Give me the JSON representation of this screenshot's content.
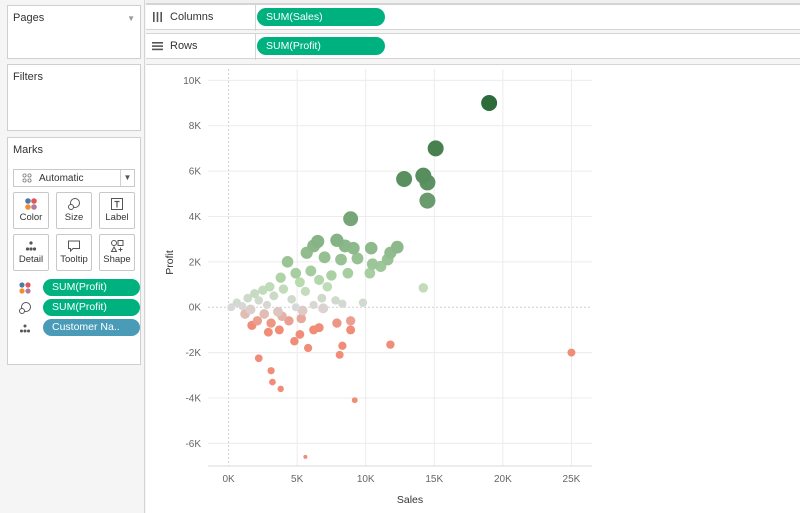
{
  "shelves": {
    "pages_label": "Pages",
    "filters_label": "Filters",
    "marks_label": "Marks",
    "columns_label": "Columns",
    "rows_label": "Rows",
    "columns_pill": "SUM(Sales)",
    "rows_pill": "SUM(Profit)"
  },
  "marks_card": {
    "mark_type": "Automatic",
    "buttons": [
      "Color",
      "Size",
      "Label",
      "Detail",
      "Tooltip",
      "Shape"
    ],
    "encodings": [
      {
        "icon": "color-dots-icon",
        "label": "SUM(Profit)",
        "color": "#00b180"
      },
      {
        "icon": "size-icon",
        "label": "SUM(Profit)",
        "color": "#00b180"
      },
      {
        "icon": "detail-dots-icon",
        "label": "Customer Na..",
        "color": "#4a9bb8"
      }
    ]
  },
  "colors": {
    "pill_green": "#00b180",
    "pill_blue": "#4a9bb8",
    "positive_dark": "#2e6b3a",
    "positive_light": "#b9ddb0",
    "negative": "#f08c78",
    "neutral": "#d8d8d8"
  },
  "chart_data": {
    "type": "scatter",
    "xlabel": "Sales",
    "ylabel": "Profit",
    "xlim": [
      -1500,
      26500
    ],
    "ylim": [
      -7000,
      10500
    ],
    "x_ticks": [
      0,
      5000,
      10000,
      15000,
      20000,
      25000
    ],
    "x_tick_labels": [
      "0K",
      "5K",
      "10K",
      "15K",
      "20K",
      "25K"
    ],
    "y_ticks": [
      -6000,
      -4000,
      -2000,
      0,
      2000,
      4000,
      6000,
      8000,
      10000
    ],
    "y_tick_labels": [
      "-6K",
      "-4K",
      "-2K",
      "0K",
      "2K",
      "4K",
      "6K",
      "8K",
      "10K"
    ],
    "grid": true,
    "points": [
      {
        "x": 19000,
        "y": 9000
      },
      {
        "x": 15100,
        "y": 7000
      },
      {
        "x": 14200,
        "y": 5800
      },
      {
        "x": 12800,
        "y": 5650
      },
      {
        "x": 14500,
        "y": 5500
      },
      {
        "x": 14500,
        "y": 4700
      },
      {
        "x": 8900,
        "y": 3900
      },
      {
        "x": 6500,
        "y": 2900
      },
      {
        "x": 7900,
        "y": 2950
      },
      {
        "x": 8500,
        "y": 2700
      },
      {
        "x": 9100,
        "y": 2600
      },
      {
        "x": 12300,
        "y": 2650
      },
      {
        "x": 10400,
        "y": 2600
      },
      {
        "x": 11800,
        "y": 2400
      },
      {
        "x": 6200,
        "y": 2700
      },
      {
        "x": 5700,
        "y": 2400
      },
      {
        "x": 4300,
        "y": 2000
      },
      {
        "x": 7000,
        "y": 2200
      },
      {
        "x": 8200,
        "y": 2100
      },
      {
        "x": 9400,
        "y": 2150
      },
      {
        "x": 10500,
        "y": 1900
      },
      {
        "x": 11100,
        "y": 1800
      },
      {
        "x": 10300,
        "y": 1500
      },
      {
        "x": 11600,
        "y": 2100
      },
      {
        "x": 14200,
        "y": 850
      },
      {
        "x": 9800,
        "y": 200
      },
      {
        "x": 3800,
        "y": 1300
      },
      {
        "x": 4900,
        "y": 1500
      },
      {
        "x": 6000,
        "y": 1600
      },
      {
        "x": 7500,
        "y": 1400
      },
      {
        "x": 8700,
        "y": 1500
      },
      {
        "x": 5200,
        "y": 1100
      },
      {
        "x": 6600,
        "y": 1200
      },
      {
        "x": 7200,
        "y": 900
      },
      {
        "x": 3000,
        "y": 900
      },
      {
        "x": 2500,
        "y": 750
      },
      {
        "x": 4000,
        "y": 800
      },
      {
        "x": 5600,
        "y": 700
      },
      {
        "x": 1900,
        "y": 600
      },
      {
        "x": 1400,
        "y": 400
      },
      {
        "x": 2200,
        "y": 300
      },
      {
        "x": 3300,
        "y": 500
      },
      {
        "x": 4600,
        "y": 350
      },
      {
        "x": 6800,
        "y": 400
      },
      {
        "x": 7800,
        "y": 300
      },
      {
        "x": 8300,
        "y": 150
      },
      {
        "x": 600,
        "y": 200
      },
      {
        "x": 1000,
        "y": 50
      },
      {
        "x": 200,
        "y": 0
      },
      {
        "x": 1600,
        "y": -100
      },
      {
        "x": 2800,
        "y": 100
      },
      {
        "x": 3600,
        "y": -200
      },
      {
        "x": 4900,
        "y": 0
      },
      {
        "x": 5400,
        "y": -150
      },
      {
        "x": 6200,
        "y": 100
      },
      {
        "x": 6900,
        "y": -50
      },
      {
        "x": 2600,
        "y": -300
      },
      {
        "x": 3900,
        "y": -400
      },
      {
        "x": 1200,
        "y": -300
      },
      {
        "x": 2100,
        "y": -600
      },
      {
        "x": 3100,
        "y": -700
      },
      {
        "x": 4400,
        "y": -600
      },
      {
        "x": 5300,
        "y": -500
      },
      {
        "x": 1700,
        "y": -800
      },
      {
        "x": 2900,
        "y": -1100
      },
      {
        "x": 3700,
        "y": -1000
      },
      {
        "x": 5200,
        "y": -1200
      },
      {
        "x": 6200,
        "y": -1000
      },
      {
        "x": 6600,
        "y": -900
      },
      {
        "x": 7900,
        "y": -700
      },
      {
        "x": 8900,
        "y": -600
      },
      {
        "x": 8900,
        "y": -1000
      },
      {
        "x": 4800,
        "y": -1500
      },
      {
        "x": 5800,
        "y": -1800
      },
      {
        "x": 8300,
        "y": -1700
      },
      {
        "x": 8100,
        "y": -2100
      },
      {
        "x": 11800,
        "y": -1650
      },
      {
        "x": 25000,
        "y": -2000
      },
      {
        "x": 2200,
        "y": -2250
      },
      {
        "x": 3100,
        "y": -2800
      },
      {
        "x": 3200,
        "y": -3300
      },
      {
        "x": 3800,
        "y": -3600
      },
      {
        "x": 9200,
        "y": -4100
      },
      {
        "x": 5600,
        "y": -6600
      }
    ]
  }
}
